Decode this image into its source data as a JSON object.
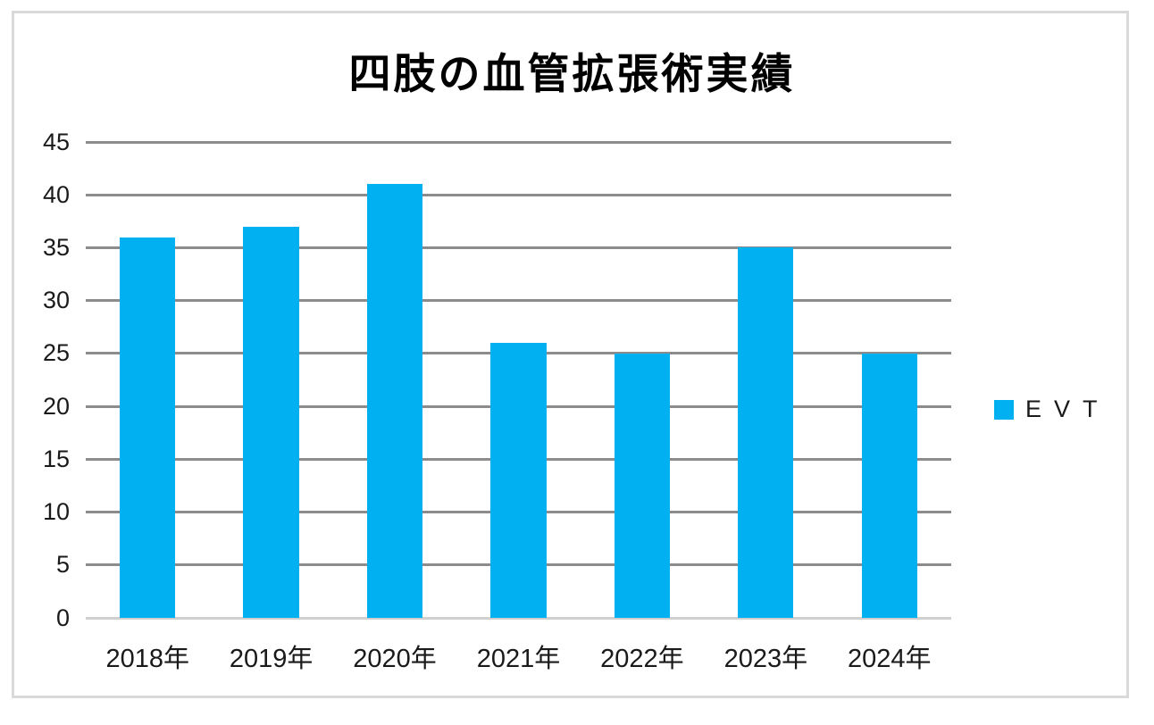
{
  "chart_data": {
    "type": "bar",
    "title": "四肢の血管拡張術実績",
    "categories": [
      "2018年",
      "2019年",
      "2020年",
      "2021年",
      "2022年",
      "2023年",
      "2024年"
    ],
    "series": [
      {
        "name": "EVT",
        "values": [
          36,
          37,
          41,
          26,
          25,
          35,
          25
        ]
      }
    ],
    "xlabel": "",
    "ylabel": "",
    "ylim": [
      0,
      45
    ],
    "ytick_step": 5,
    "grid": true,
    "legend_position": "right",
    "colors": {
      "bar": "#00B0F0",
      "gridline": "#8C8C8C",
      "baseline": "#CFCFCF"
    }
  }
}
